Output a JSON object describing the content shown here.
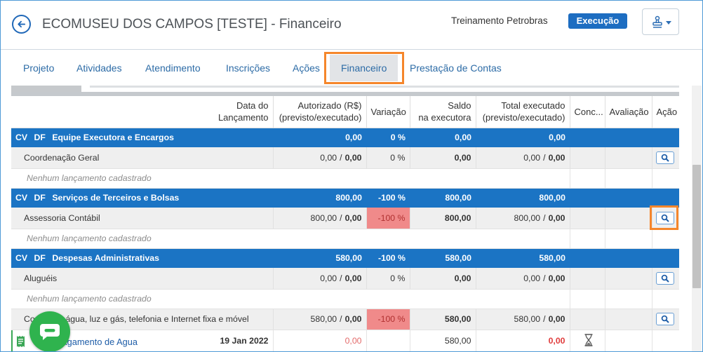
{
  "header": {
    "title": "ECOMUSEU DOS CAMPOS [TESTE] - Financeiro",
    "organization": "Treinamento Petrobras",
    "status_badge": "Execução",
    "back_button_icon": "arrow-left-icon",
    "actions_menu_icon": "stamp-icon",
    "actions_menu_caret": "caret-down-icon"
  },
  "tabs": [
    {
      "label": "Projeto"
    },
    {
      "label": "Atividades"
    },
    {
      "label": "Atendimento"
    },
    {
      "label": "Inscrições"
    },
    {
      "label": "Ações"
    },
    {
      "label": "Financeiro",
      "active": true,
      "highlighted": true
    },
    {
      "label": "Prestação de Contas"
    }
  ],
  "table": {
    "headers": {
      "date": {
        "line1": "Data do",
        "line2": "Lançamento"
      },
      "authorized": {
        "line1": "Autorizado (R$)",
        "line2": "(previsto/executado)"
      },
      "variation": "Variação",
      "balance": {
        "line1": "Saldo",
        "line2": "na executora"
      },
      "total": {
        "line1": "Total executado",
        "line2": "(previsto/executado)"
      },
      "conc": "Conc...",
      "evaluation": "Avaliação",
      "action": "Ação"
    },
    "value_separator": "/",
    "rows": [
      {
        "type": "group",
        "tag1": "CV",
        "tag2": "DF",
        "name": "Equipe Executora e Encargos",
        "authorized": "0,00",
        "variation": "0 %",
        "balance": "0,00",
        "total": "0,00"
      },
      {
        "type": "item",
        "name": "Coordenação Geral",
        "authorized_planned": "0,00",
        "authorized_executed": "0,00",
        "variation": "0 %",
        "variation_alert": false,
        "balance": "0,00",
        "total_planned": "0,00",
        "total_executed": "0,00",
        "action_icon": "search-icon"
      },
      {
        "type": "empty",
        "message": "Nenhum lançamento cadastrado"
      },
      {
        "type": "group",
        "tag1": "CV",
        "tag2": "DF",
        "name": "Serviços de Terceiros e Bolsas",
        "authorized": "800,00",
        "variation": "-100 %",
        "balance": "800,00",
        "total": "800,00"
      },
      {
        "type": "item",
        "name": "Assessoria Contábil",
        "authorized_planned": "800,00",
        "authorized_executed": "0,00",
        "variation": "-100 %",
        "variation_alert": true,
        "balance": "800,00",
        "total_planned": "800,00",
        "total_executed": "0,00",
        "action_icon": "search-icon",
        "highlighted": true
      },
      {
        "type": "empty",
        "message": "Nenhum lançamento cadastrado"
      },
      {
        "type": "group",
        "tag1": "CV",
        "tag2": "DF",
        "name": "Despesas Administrativas",
        "authorized": "580,00",
        "variation": "-100 %",
        "balance": "580,00",
        "total": "580,00"
      },
      {
        "type": "item",
        "name": "Aluguéis",
        "authorized_planned": "0,00",
        "authorized_executed": "0,00",
        "variation": "0 %",
        "variation_alert": false,
        "balance": "0,00",
        "total_planned": "0,00",
        "total_executed": "0,00",
        "action_icon": "search-icon"
      },
      {
        "type": "empty",
        "message": "Nenhum lançamento cadastrado"
      },
      {
        "type": "item",
        "name": "Contas de água, luz e gás, telefonia e Internet fixa e móvel",
        "authorized_planned": "580,00",
        "authorized_executed": "0,00",
        "variation": "-100 %",
        "variation_alert": true,
        "balance": "580,00",
        "total_planned": "580,00",
        "total_executed": "0,00",
        "action_icon": "search-icon"
      },
      {
        "type": "entry",
        "icon": "receipt-icon",
        "name": "Pagamento de Agua",
        "date": "19 Jan 2022",
        "authorized": "0,00",
        "balance": "580,00",
        "total": "0,00",
        "status_icon": "hourglass-icon"
      }
    ]
  },
  "chat_widget": {
    "icon": "chat-bubble-icon"
  },
  "colors": {
    "primary": "#1b74c4",
    "badge": "#1d6dc1",
    "row_alert": "#f08a8a",
    "negative_value": "#e03c3c",
    "highlight_outline": "#f5862b",
    "chat_widget": "#2fb34e",
    "entry_marker": "#3aa655"
  }
}
